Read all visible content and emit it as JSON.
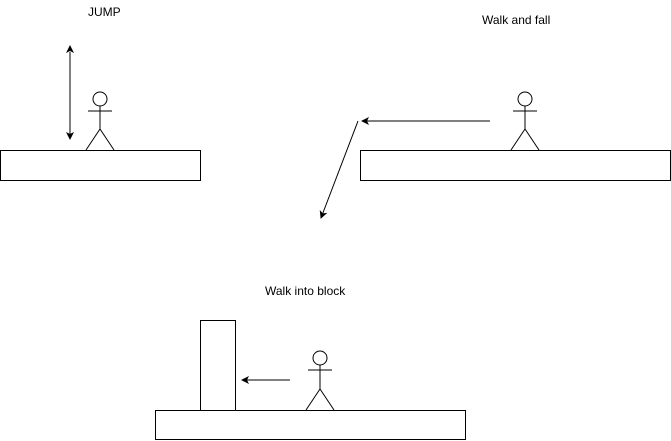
{
  "diagram": {
    "labels": {
      "jump": "JUMP",
      "walk_and_fall": "Walk and fall",
      "walk_into_block": "Walk into block"
    },
    "colors": {
      "stroke": "#000000",
      "fill": "#ffffff",
      "background": "#ffffff"
    }
  }
}
